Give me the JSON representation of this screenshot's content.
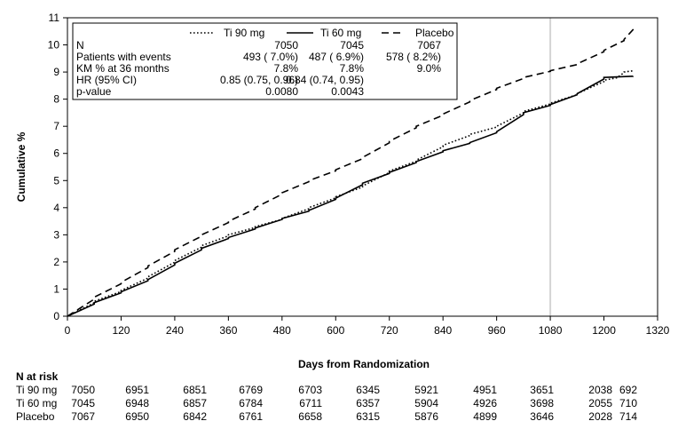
{
  "chart_data": {
    "type": "line",
    "title": "",
    "xlabel": "Days from Randomization",
    "ylabel": "Cumulative %",
    "xlim": [
      0,
      1320
    ],
    "ylim": [
      0,
      11
    ],
    "xticks": [
      0,
      120,
      240,
      360,
      480,
      600,
      720,
      840,
      960,
      1080,
      1200,
      1320
    ],
    "yticks": [
      0,
      1,
      2,
      3,
      4,
      5,
      6,
      7,
      8,
      9,
      10,
      11
    ],
    "reference_line_x": 1080,
    "grid": false,
    "legend_position": "top",
    "series": [
      {
        "name": "Ti 90 mg",
        "line_style": "dotted",
        "points": [
          [
            0,
            0
          ],
          [
            60,
            0.55
          ],
          [
            120,
            0.95
          ],
          [
            180,
            1.45
          ],
          [
            240,
            2.05
          ],
          [
            300,
            2.6
          ],
          [
            360,
            3.0
          ],
          [
            420,
            3.3
          ],
          [
            480,
            3.6
          ],
          [
            540,
            4.0
          ],
          [
            600,
            4.4
          ],
          [
            660,
            4.8
          ],
          [
            720,
            5.35
          ],
          [
            780,
            5.75
          ],
          [
            840,
            6.3
          ],
          [
            900,
            6.7
          ],
          [
            960,
            7.0
          ],
          [
            1020,
            7.55
          ],
          [
            1080,
            7.85
          ],
          [
            1140,
            8.2
          ],
          [
            1200,
            8.7
          ],
          [
            1230,
            8.8
          ],
          [
            1245,
            9.0
          ],
          [
            1265,
            9.05
          ]
        ]
      },
      {
        "name": "Ti 60 mg",
        "line_style": "solid",
        "points": [
          [
            0,
            0
          ],
          [
            60,
            0.5
          ],
          [
            120,
            0.9
          ],
          [
            180,
            1.35
          ],
          [
            240,
            1.95
          ],
          [
            300,
            2.5
          ],
          [
            360,
            2.9
          ],
          [
            420,
            3.25
          ],
          [
            480,
            3.6
          ],
          [
            540,
            3.9
          ],
          [
            600,
            4.35
          ],
          [
            660,
            4.9
          ],
          [
            720,
            5.3
          ],
          [
            780,
            5.7
          ],
          [
            840,
            6.1
          ],
          [
            900,
            6.4
          ],
          [
            960,
            6.8
          ],
          [
            1020,
            7.5
          ],
          [
            1080,
            7.8
          ],
          [
            1140,
            8.2
          ],
          [
            1200,
            8.8
          ],
          [
            1265,
            8.85
          ]
        ]
      },
      {
        "name": "Placebo",
        "line_style": "dashed",
        "points": [
          [
            0,
            0
          ],
          [
            60,
            0.7
          ],
          [
            120,
            1.25
          ],
          [
            180,
            1.85
          ],
          [
            240,
            2.45
          ],
          [
            300,
            3.0
          ],
          [
            360,
            3.5
          ],
          [
            420,
            4.0
          ],
          [
            480,
            4.55
          ],
          [
            540,
            5.0
          ],
          [
            600,
            5.4
          ],
          [
            660,
            5.85
          ],
          [
            720,
            6.45
          ],
          [
            780,
            7.0
          ],
          [
            840,
            7.45
          ],
          [
            900,
            7.95
          ],
          [
            960,
            8.4
          ],
          [
            1020,
            8.8
          ],
          [
            1080,
            9.05
          ],
          [
            1140,
            9.3
          ],
          [
            1200,
            9.8
          ],
          [
            1245,
            10.2
          ],
          [
            1265,
            10.6
          ]
        ]
      }
    ],
    "legend_table": {
      "row_labels": [
        "N",
        "Patients with events",
        "KM % at 36 months",
        "HR (95% CI)",
        "p-value"
      ],
      "columns": [
        {
          "name": "Ti 90 mg",
          "values": [
            "7050",
            "493 ( 7.0%)",
            "7.8%",
            "0.85 (0.75, 0.96)",
            "0.0080"
          ]
        },
        {
          "name": "Ti 60 mg",
          "values": [
            "7045",
            "487 ( 6.9%)",
            "7.8%",
            "0.84 (0.74, 0.95)",
            "0.0043"
          ]
        },
        {
          "name": "Placebo",
          "values": [
            "7067",
            "578 ( 8.2%)",
            "9.0%",
            "",
            ""
          ]
        }
      ]
    },
    "risk_table": {
      "title": "N at risk",
      "rows": [
        {
          "name": "Ti 90 mg",
          "values": [
            "7050",
            "6951",
            "6851",
            "6769",
            "6703",
            "6345",
            "5921",
            "4951",
            "3651",
            "2038",
            "692"
          ]
        },
        {
          "name": "Ti 60 mg",
          "values": [
            "7045",
            "6948",
            "6857",
            "6784",
            "6711",
            "6357",
            "5904",
            "4926",
            "3698",
            "2055",
            "710"
          ]
        },
        {
          "name": "Placebo",
          "values": [
            "7067",
            "6950",
            "6842",
            "6761",
            "6658",
            "6315",
            "5876",
            "4899",
            "3646",
            "2028",
            "714"
          ]
        }
      ]
    }
  }
}
